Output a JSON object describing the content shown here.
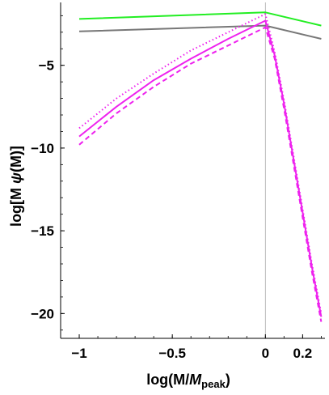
{
  "chart_data": {
    "type": "line",
    "xlabel": {
      "main": "log(M/",
      "italic": "M",
      "sub": "peak",
      "close": ")"
    },
    "ylabel": {
      "pre": "log[M ",
      "italic": "ψ",
      "post": "(M)]"
    },
    "xlim": [
      -1.1,
      0.32
    ],
    "ylim": [
      -21.5,
      -1.2
    ],
    "x_ticks": [
      -1,
      -0.5,
      0,
      0.2
    ],
    "x_tick_labels": [
      "−1",
      "−0.5",
      "0",
      "0.2"
    ],
    "y_ticks": [
      -5,
      -10,
      -15,
      -20
    ],
    "y_tick_labels": [
      "−5",
      "−10",
      "−15",
      "−20"
    ],
    "vertical_rule_x": 0,
    "series": [
      {
        "color": "#22ee22",
        "dash": "solid",
        "x": [
          -1,
          0,
          0.3
        ],
        "y": [
          -2.2,
          -1.8,
          -2.6
        ]
      },
      {
        "color": "#777777",
        "dash": "solid",
        "x": [
          -1,
          0,
          0.3
        ],
        "y": [
          -2.95,
          -2.6,
          -3.4
        ]
      },
      {
        "color": "#ee22ee",
        "dash": "solid",
        "x": [
          -1,
          -0.8,
          -0.6,
          -0.4,
          -0.2,
          0,
          0.05,
          0.1,
          0.15,
          0.2,
          0.25,
          0.3
        ],
        "y": [
          -9.3,
          -7.5,
          -5.9,
          -4.6,
          -3.4,
          -2.3,
          -4.4,
          -7.3,
          -10.6,
          -13.9,
          -17.2,
          -20.2
        ]
      },
      {
        "color": "#ee22ee",
        "dash": "dashed",
        "x": [
          -1,
          -0.8,
          -0.6,
          -0.4,
          -0.2,
          0,
          0.05,
          0.1,
          0.15,
          0.2,
          0.25,
          0.3
        ],
        "y": [
          -9.8,
          -7.9,
          -6.3,
          -4.9,
          -3.8,
          -2.7,
          -4.6,
          -7.6,
          -10.9,
          -14.2,
          -17.5,
          -20.5
        ]
      },
      {
        "color": "#ee22ee",
        "dash": "dotted",
        "x": [
          -1,
          -0.8,
          -0.6,
          -0.4,
          -0.2,
          0,
          0.05,
          0.1,
          0.15,
          0.2,
          0.25,
          0.3
        ],
        "y": [
          -8.8,
          -7.0,
          -5.5,
          -4.1,
          -3.0,
          -1.9,
          -4.2,
          -7.1,
          -10.4,
          -13.7,
          -17.0,
          -20.0
        ]
      }
    ]
  }
}
